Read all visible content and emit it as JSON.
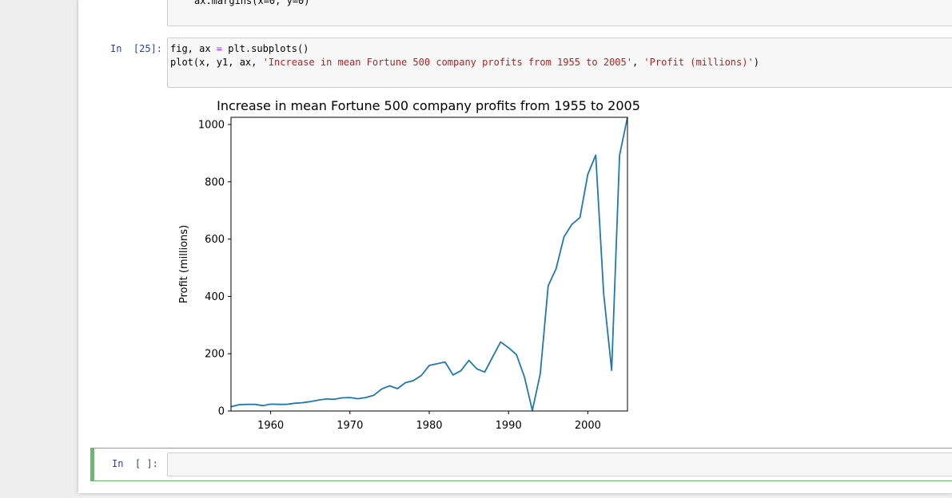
{
  "previous_cell": {
    "code": "ax.margins(x=0, y=0)"
  },
  "cell_25": {
    "prompt": "In  [25]:",
    "line1": {
      "a": "fig, ax ",
      "op": "=",
      "b": " plt.subplots()"
    },
    "line2": {
      "a": "plot(x, y1, ax, ",
      "s1": "'Increase in mean Fortune 500 company profits from 1955 to 2005'",
      "b": ", ",
      "s2": "'Profit (millions)'",
      "c": ")"
    }
  },
  "empty_cell": {
    "prompt": "In  [ ]:"
  },
  "colors": {
    "line": "#1f77b4",
    "prompt": "#303f9f",
    "string": "#ba2121",
    "operator": "#aa22ff",
    "selected_cell": "#66bb6a"
  },
  "chart_data": {
    "type": "line",
    "title": "Increase in mean Fortune 500 company profits from 1955 to 2005",
    "xlabel": "",
    "ylabel": "Profit (millions)",
    "xlim": [
      1955,
      2005
    ],
    "ylim": [
      0,
      1025
    ],
    "xticks": [
      1960,
      1970,
      1980,
      1990,
      2000
    ],
    "yticks": [
      0,
      200,
      400,
      600,
      800,
      1000
    ],
    "grid": false,
    "series": [
      {
        "x": [
          1955,
          1956,
          1957,
          1958,
          1959,
          1960,
          1961,
          1962,
          1963,
          1964,
          1965,
          1966,
          1967,
          1968,
          1969,
          1970,
          1971,
          1972,
          1973,
          1974,
          1975,
          1976,
          1977,
          1978,
          1979,
          1980,
          1981,
          1982,
          1983,
          1984,
          1985,
          1986,
          1987,
          1988,
          1989,
          1990,
          1991,
          1992,
          1993,
          1994,
          1995,
          1996,
          1997,
          1998,
          1999,
          2000,
          2001,
          2002,
          2003,
          2004,
          2005
        ],
        "y": [
          15,
          22,
          23,
          23,
          19,
          24,
          23,
          23,
          27,
          29,
          33,
          38,
          42,
          41,
          46,
          47,
          43,
          47,
          55,
          77,
          88,
          78,
          99,
          106,
          124,
          159,
          165,
          171,
          126,
          141,
          177,
          147,
          136,
          189,
          241,
          221,
          197,
          120,
          2,
          130,
          437,
          497,
          608,
          652,
          675,
          826,
          893,
          410,
          142,
          893,
          1025
        ]
      }
    ]
  }
}
